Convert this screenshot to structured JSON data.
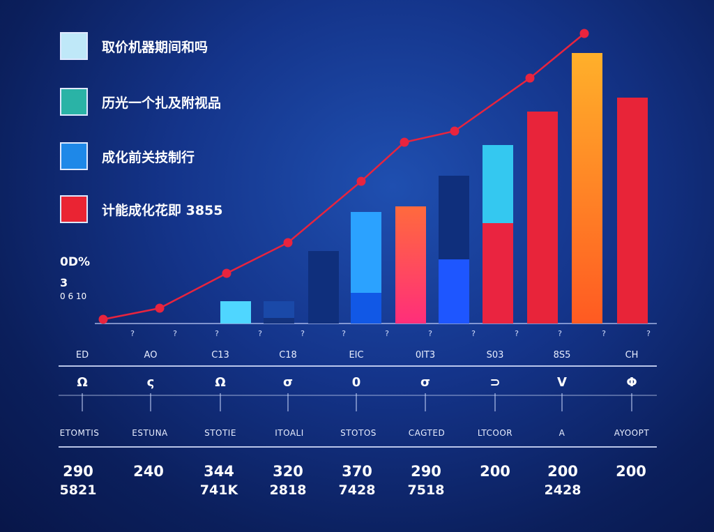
{
  "chart_data": {
    "type": "bar",
    "title": "",
    "xlabel": "",
    "ylabel": "",
    "ylim": [
      0,
      100
    ],
    "legend": {
      "placement": "top-left",
      "entries": [
        {
          "label": "取价机器期间和吗",
          "color": "#bfe8f8"
        },
        {
          "label": "历光一个扎及附视品",
          "color": "#2ab3a6"
        },
        {
          "label": "成化前关技制行",
          "color": "#1e88e8"
        },
        {
          "label": "计能成化花即 3855",
          "color": "#ea2433"
        }
      ]
    },
    "x_tick_labels": [
      "?",
      "?",
      "?",
      "?",
      "?",
      "?",
      "?",
      "?",
      "?",
      "?",
      "?",
      "?",
      "?",
      "?"
    ],
    "bars": [
      {
        "value": 8,
        "segments": [
          {
            "value": 8,
            "color": "#4fd6ff"
          }
        ]
      },
      {
        "value": 8,
        "segments": [
          {
            "value": 2,
            "color": "#13327d"
          },
          {
            "value": 6,
            "color": "#1a49a8"
          }
        ]
      },
      {
        "value": 26,
        "segments": [
          {
            "value": 26,
            "color": "#0f2f7c"
          }
        ]
      },
      {
        "value": 40,
        "segments": [
          {
            "value": 11,
            "color": "#1158e6"
          },
          {
            "value": 29,
            "color": "#2ba2ff"
          }
        ]
      },
      {
        "value": 42,
        "segments": [
          {
            "value": 42,
            "color": "gradient-warm"
          }
        ]
      },
      {
        "value": 53,
        "segments": [
          {
            "value": 23,
            "color": "#1e56ff"
          },
          {
            "value": 30,
            "color": "#0f2f7c"
          }
        ]
      },
      {
        "value": 64,
        "segments": [
          {
            "value": 36,
            "color": "#ea2440"
          },
          {
            "value": 28,
            "color": "#34c8f0"
          }
        ]
      },
      {
        "value": 76,
        "segments": [
          {
            "value": 76,
            "color": "#e8243a"
          }
        ]
      },
      {
        "value": 97,
        "segments": [
          {
            "value": 97,
            "color": "gradient-orange"
          }
        ]
      },
      {
        "value": 81,
        "segments": [
          {
            "value": 81,
            "color": "#e82438"
          }
        ]
      }
    ],
    "line": {
      "color": "#e8243e",
      "points": [
        {
          "x": 0,
          "y": 1.5
        },
        {
          "x": 1,
          "y": 5.5
        },
        {
          "x": 2,
          "y": 18
        },
        {
          "x": 3,
          "y": 29
        },
        {
          "x": 4,
          "y": 51
        },
        {
          "x": 5,
          "y": 65
        },
        {
          "x": 6,
          "y": 69
        },
        {
          "x": 7,
          "y": 88
        },
        {
          "x": 8,
          "y": 104
        }
      ]
    }
  },
  "side_notes": [
    "0D%",
    "3",
    "0 6 10"
  ],
  "codes": [
    "ED",
    "AO",
    "C13",
    "C18",
    "EIC",
    "0IT3",
    "S03",
    "8S5",
    "CH"
  ],
  "glyphs": [
    "Ω",
    "ς",
    "Ω",
    "σ",
    "0",
    "σ",
    "⊃",
    "V",
    "Φ"
  ],
  "sublabels": [
    "ETOMTIS",
    "ESTUNA",
    "STOTIE",
    "ITOALI",
    "STOTOS",
    "CAGTED",
    "LTCOOR",
    "A",
    "AYOOPT"
  ],
  "values_row1": [
    "290",
    "240",
    "344",
    "320",
    "370",
    "290",
    "200",
    "200",
    "200"
  ],
  "values_row2": [
    "5821",
    "",
    "741K",
    "2818",
    "7428",
    "7518",
    "",
    "2428",
    ""
  ]
}
